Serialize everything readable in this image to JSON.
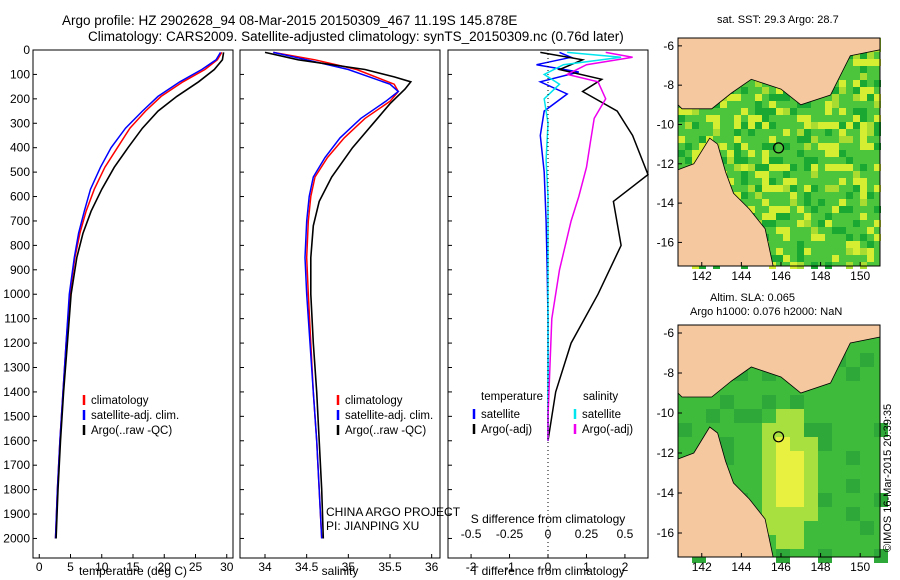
{
  "header": {
    "line1": "Argo profile: HZ 2902628_94 08-Mar-2015 20150309_467 11.19S 145.878E",
    "line2": "Climatology: CARS2009. Satellite-adjusted climatology: synTS_20150309.nc (0.76d later)"
  },
  "map_top": {
    "label": "sat. SST: 29.3 Argo: 28.7",
    "xticks": [
      "142",
      "144",
      "146",
      "148",
      "150"
    ],
    "yticks": [
      "-6",
      "-8",
      "-10",
      "-12",
      "-14",
      "-16"
    ],
    "xlim": [
      140.8,
      151.0
    ],
    "ylim": [
      -17.2,
      -5.6
    ],
    "argo_lon": 145.878,
    "argo_lat": -11.19
  },
  "map_bottom": {
    "label1": "Altim. SLA: 0.065",
    "label2": "Argo h1000: 0.076 h2000: NaN",
    "xticks": [
      "142",
      "144",
      "146",
      "148",
      "150"
    ],
    "yticks": [
      "-6",
      "-8",
      "-10",
      "-12",
      "-14",
      "-16"
    ],
    "xlim": [
      140.8,
      151.0
    ],
    "ylim": [
      -17.2,
      -5.6
    ]
  },
  "credit": {
    "project": "CHINA ARGO PROJECT",
    "pi": "PI: JIANPING XU",
    "imos": "©IMOS 16-Mar-2015 20:39:35"
  },
  "colors": {
    "climatology": "#ff0000",
    "satellite": "#0000ff",
    "argo": "#000000",
    "sal_satellite": "#00e5ee",
    "sal_argo": "#ee00ee",
    "land": "#f5c8a0",
    "ocean_dark": "#1aa832",
    "ocean_mid": "#4cc43c",
    "ocean_light": "#d6ee32"
  },
  "chart_data": [
    {
      "type": "line",
      "name": "temperature",
      "xlabel": "temperature (deg C)",
      "ylabel": "",
      "xlim": [
        -1,
        31
      ],
      "ylim": [
        2080,
        0
      ],
      "xticks": [
        "0",
        "5",
        "10",
        "15",
        "20",
        "25",
        "30"
      ],
      "yticks": [
        "0",
        "100",
        "200",
        "300",
        "400",
        "500",
        "600",
        "700",
        "800",
        "900",
        "1000",
        "1100",
        "1200",
        "1300",
        "1400",
        "1500",
        "1600",
        "1700",
        "1800",
        "1900",
        "2000"
      ],
      "legend": [
        "climatology",
        "satellite-adj. clim.",
        "Argo(..raw -QC)"
      ],
      "series": [
        {
          "name": "climatology",
          "color": "#ff0000",
          "points": [
            [
              29.2,
              10
            ],
            [
              28.5,
              40
            ],
            [
              26.5,
              80
            ],
            [
              23,
              130
            ],
            [
              19.5,
              190
            ],
            [
              17,
              250
            ],
            [
              14.5,
              320
            ],
            [
              12.5,
              400
            ],
            [
              10.5,
              480
            ],
            [
              8.8,
              570
            ],
            [
              7.5,
              660
            ],
            [
              6.5,
              750
            ],
            [
              5.7,
              850
            ],
            [
              4.9,
              1000
            ],
            [
              4.3,
              1200
            ],
            [
              3.8,
              1400
            ],
            [
              3.3,
              1600
            ],
            [
              2.9,
              1800
            ],
            [
              2.6,
              2000
            ]
          ]
        },
        {
          "name": "satellite-adj. clim.",
          "color": "#0000ff",
          "points": [
            [
              29.0,
              10
            ],
            [
              28.3,
              40
            ],
            [
              26.0,
              80
            ],
            [
              22.5,
              130
            ],
            [
              19.0,
              190
            ],
            [
              16.5,
              250
            ],
            [
              13.8,
              320
            ],
            [
              11.5,
              400
            ],
            [
              9.8,
              480
            ],
            [
              8.2,
              570
            ],
            [
              7.2,
              660
            ],
            [
              6.3,
              750
            ],
            [
              5.6,
              850
            ],
            [
              4.8,
              1000
            ],
            [
              4.3,
              1200
            ],
            [
              3.8,
              1400
            ],
            [
              3.3,
              1600
            ],
            [
              2.9,
              1800
            ],
            [
              2.6,
              2000
            ]
          ]
        },
        {
          "name": "Argo(..raw -QC)",
          "color": "#000000",
          "points": [
            [
              29.5,
              10
            ],
            [
              29.3,
              40
            ],
            [
              28.0,
              80
            ],
            [
              25.5,
              130
            ],
            [
              22.0,
              190
            ],
            [
              19.0,
              250
            ],
            [
              16.5,
              320
            ],
            [
              14.2,
              400
            ],
            [
              12.0,
              480
            ],
            [
              10.0,
              570
            ],
            [
              8.3,
              660
            ],
            [
              7.0,
              750
            ],
            [
              6.0,
              850
            ],
            [
              5.1,
              1000
            ],
            [
              4.5,
              1200
            ],
            [
              3.9,
              1400
            ],
            [
              3.4,
              1600
            ],
            [
              3.0,
              1800
            ],
            [
              2.7,
              2000
            ]
          ]
        }
      ]
    },
    {
      "type": "line",
      "name": "salinity",
      "xlabel": "salinity",
      "xlim": [
        33.7,
        36.1
      ],
      "ylim": [
        2080,
        0
      ],
      "xticks": [
        "34",
        "34.5",
        "35",
        "35.5",
        "36"
      ],
      "legend": [
        "climatology",
        "satellite-adj. clim.",
        "Argo(..raw -QC)"
      ],
      "series": [
        {
          "name": "climatology",
          "color": "#ff0000",
          "points": [
            [
              34.1,
              10
            ],
            [
              34.6,
              40
            ],
            [
              35.1,
              80
            ],
            [
              35.55,
              140
            ],
            [
              35.6,
              170
            ],
            [
              35.5,
              210
            ],
            [
              35.2,
              280
            ],
            [
              34.95,
              360
            ],
            [
              34.75,
              440
            ],
            [
              34.6,
              520
            ],
            [
              34.55,
              600
            ],
            [
              34.52,
              700
            ],
            [
              34.5,
              850
            ],
            [
              34.52,
              1000
            ],
            [
              34.55,
              1200
            ],
            [
              34.58,
              1400
            ],
            [
              34.62,
              1600
            ],
            [
              34.65,
              1800
            ],
            [
              34.68,
              2000
            ]
          ]
        },
        {
          "name": "satellite-adj. clim.",
          "color": "#0000ff",
          "points": [
            [
              34.1,
              10
            ],
            [
              34.5,
              40
            ],
            [
              35.0,
              80
            ],
            [
              35.5,
              140
            ],
            [
              35.6,
              170
            ],
            [
              35.45,
              210
            ],
            [
              35.15,
              280
            ],
            [
              34.9,
              360
            ],
            [
              34.72,
              440
            ],
            [
              34.58,
              520
            ],
            [
              34.53,
              600
            ],
            [
              34.5,
              700
            ],
            [
              34.48,
              850
            ],
            [
              34.5,
              1000
            ],
            [
              34.54,
              1200
            ],
            [
              34.58,
              1400
            ],
            [
              34.62,
              1600
            ],
            [
              34.65,
              1800
            ],
            [
              34.68,
              2000
            ]
          ]
        },
        {
          "name": "Argo(..raw -QC)",
          "color": "#000000",
          "points": [
            [
              34.0,
              10
            ],
            [
              34.4,
              40
            ],
            [
              35.2,
              80
            ],
            [
              35.55,
              110
            ],
            [
              35.75,
              130
            ],
            [
              35.68,
              160
            ],
            [
              35.5,
              220
            ],
            [
              35.3,
              300
            ],
            [
              35.05,
              400
            ],
            [
              34.8,
              520
            ],
            [
              34.65,
              620
            ],
            [
              34.58,
              720
            ],
            [
              34.55,
              850
            ],
            [
              34.55,
              1000
            ],
            [
              34.58,
              1200
            ],
            [
              34.62,
              1400
            ],
            [
              34.65,
              1600
            ],
            [
              34.68,
              1800
            ],
            [
              34.7,
              2000
            ]
          ]
        }
      ]
    },
    {
      "type": "line",
      "name": "difference",
      "xlabel_top": "S difference from climatology",
      "xlabel": "T difference from climatology",
      "xlim": [
        -2.6,
        2.6
      ],
      "ylim": [
        2080,
        0
      ],
      "xticks_t": [
        "-2",
        "-1",
        "0",
        "1",
        "2"
      ],
      "xticks_s": [
        "-0.5",
        "-0.25",
        "0",
        "0.25",
        "0.5"
      ],
      "legend_t_title": "temperature",
      "legend_s_title": "salinity",
      "legend": [
        "satellite",
        "Argo(-adj)",
        "satellite",
        "Argo(-adj)"
      ],
      "series": [
        {
          "name": "temperature satellite",
          "color": "#0000ff",
          "points": [
            [
              0.3,
              10
            ],
            [
              0.6,
              30
            ],
            [
              -0.3,
              60
            ],
            [
              0.8,
              90
            ],
            [
              -0.2,
              130
            ],
            [
              0.5,
              180
            ],
            [
              -0.1,
              250
            ],
            [
              -0.2,
              350
            ],
            [
              -0.1,
              500
            ],
            [
              -0.05,
              700
            ],
            [
              -0.02,
              900
            ],
            [
              0,
              1100
            ],
            [
              0,
              1300
            ],
            [
              0,
              1500
            ],
            [
              0,
              1600
            ]
          ]
        },
        {
          "name": "temperature Argo(-adj)",
          "color": "#000000",
          "points": [
            [
              -0.2,
              10
            ],
            [
              0.9,
              40
            ],
            [
              0.3,
              80
            ],
            [
              1.4,
              120
            ],
            [
              0.9,
              170
            ],
            [
              1.8,
              250
            ],
            [
              2.2,
              350
            ],
            [
              2.6,
              510
            ],
            [
              1.7,
              620
            ],
            [
              1.9,
              800
            ],
            [
              1.3,
              1000
            ],
            [
              0.6,
              1200
            ],
            [
              0.2,
              1400
            ],
            [
              0.05,
              1550
            ],
            [
              0,
              1600
            ]
          ]
        },
        {
          "name": "salinity satellite",
          "color": "#00e5ee",
          "points": [
            [
              0.5,
              10
            ],
            [
              1.9,
              30
            ],
            [
              0.4,
              60
            ],
            [
              -0.1,
              100
            ],
            [
              0.3,
              140
            ],
            [
              -0.1,
              200
            ],
            [
              0,
              300
            ],
            [
              -0.05,
              450
            ],
            [
              0,
              600
            ],
            [
              0,
              800
            ],
            [
              0,
              1000
            ],
            [
              0,
              1200
            ],
            [
              0,
              1400
            ],
            [
              0,
              1600
            ]
          ]
        },
        {
          "name": "salinity Argo(-adj)",
          "color": "#ee00ee",
          "points": [
            [
              1.5,
              10
            ],
            [
              2.2,
              30
            ],
            [
              1.0,
              60
            ],
            [
              0.5,
              100
            ],
            [
              1.3,
              130
            ],
            [
              1.5,
              200
            ],
            [
              1.2,
              280
            ],
            [
              1.1,
              380
            ],
            [
              1.0,
              480
            ],
            [
              0.8,
              600
            ],
            [
              0.6,
              700
            ],
            [
              0.3,
              900
            ],
            [
              0.1,
              1100
            ],
            [
              0.05,
              1300
            ],
            [
              0,
              1500
            ],
            [
              0,
              1600
            ]
          ]
        }
      ]
    }
  ]
}
